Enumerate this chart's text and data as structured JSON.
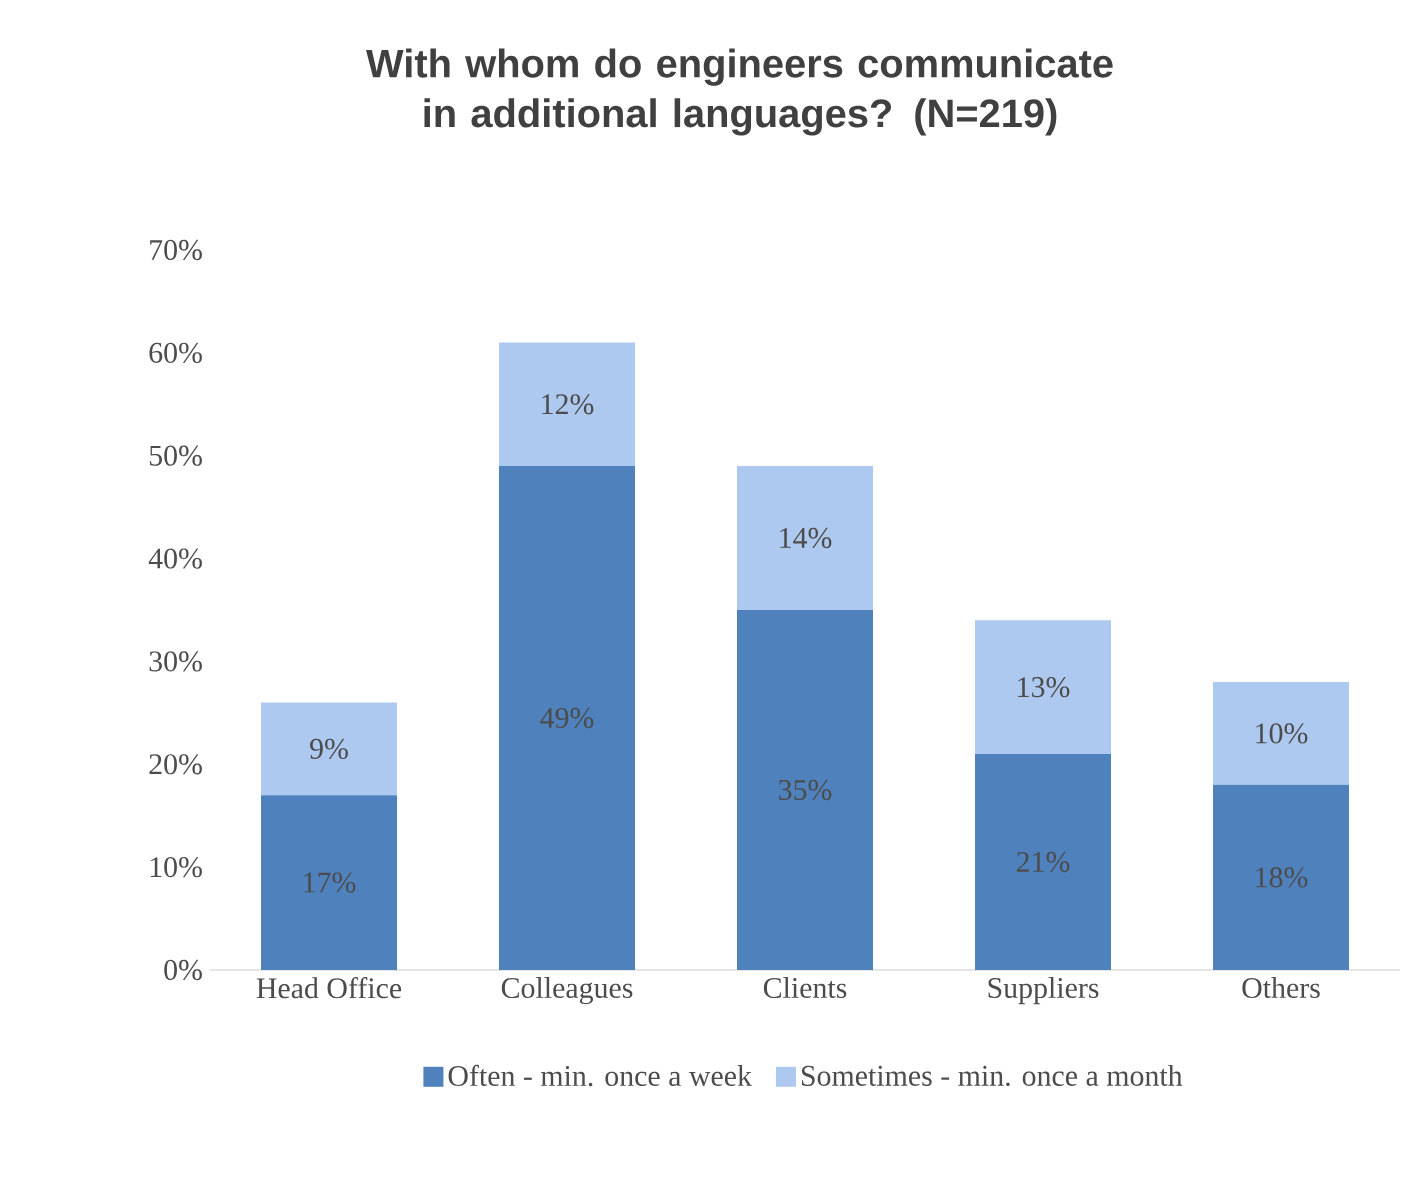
{
  "chart_data": {
    "type": "bar",
    "stacked": true,
    "title": "With whom do engineers communicate in additional languages? (N=219)",
    "categories": [
      "Head Office",
      "Colleagues",
      "Clients",
      "Suppliers",
      "Others"
    ],
    "series": [
      {
        "name": "Often - min. once a week",
        "color": "#4f81bd",
        "values": [
          17,
          49,
          35,
          21,
          18
        ],
        "value_labels": [
          "17%",
          "49%",
          "35%",
          "21%",
          "18%"
        ]
      },
      {
        "name": "Sometimes - min. once a month",
        "color": "#aec9ef",
        "values": [
          9,
          12,
          14,
          13,
          10
        ],
        "value_labels": [
          "9%",
          "12%",
          "14%",
          "13%",
          "10%"
        ]
      }
    ],
    "ylim": [
      0,
      70
    ],
    "yticks": [
      {
        "value": 0,
        "label": "0%"
      },
      {
        "value": 10,
        "label": "10%"
      },
      {
        "value": 20,
        "label": "20%"
      },
      {
        "value": 30,
        "label": "30%"
      },
      {
        "value": 40,
        "label": "40%"
      },
      {
        "value": 50,
        "label": "50%"
      },
      {
        "value": 60,
        "label": "60%"
      },
      {
        "value": 70,
        "label": "70%"
      }
    ],
    "legend": "bottom"
  }
}
